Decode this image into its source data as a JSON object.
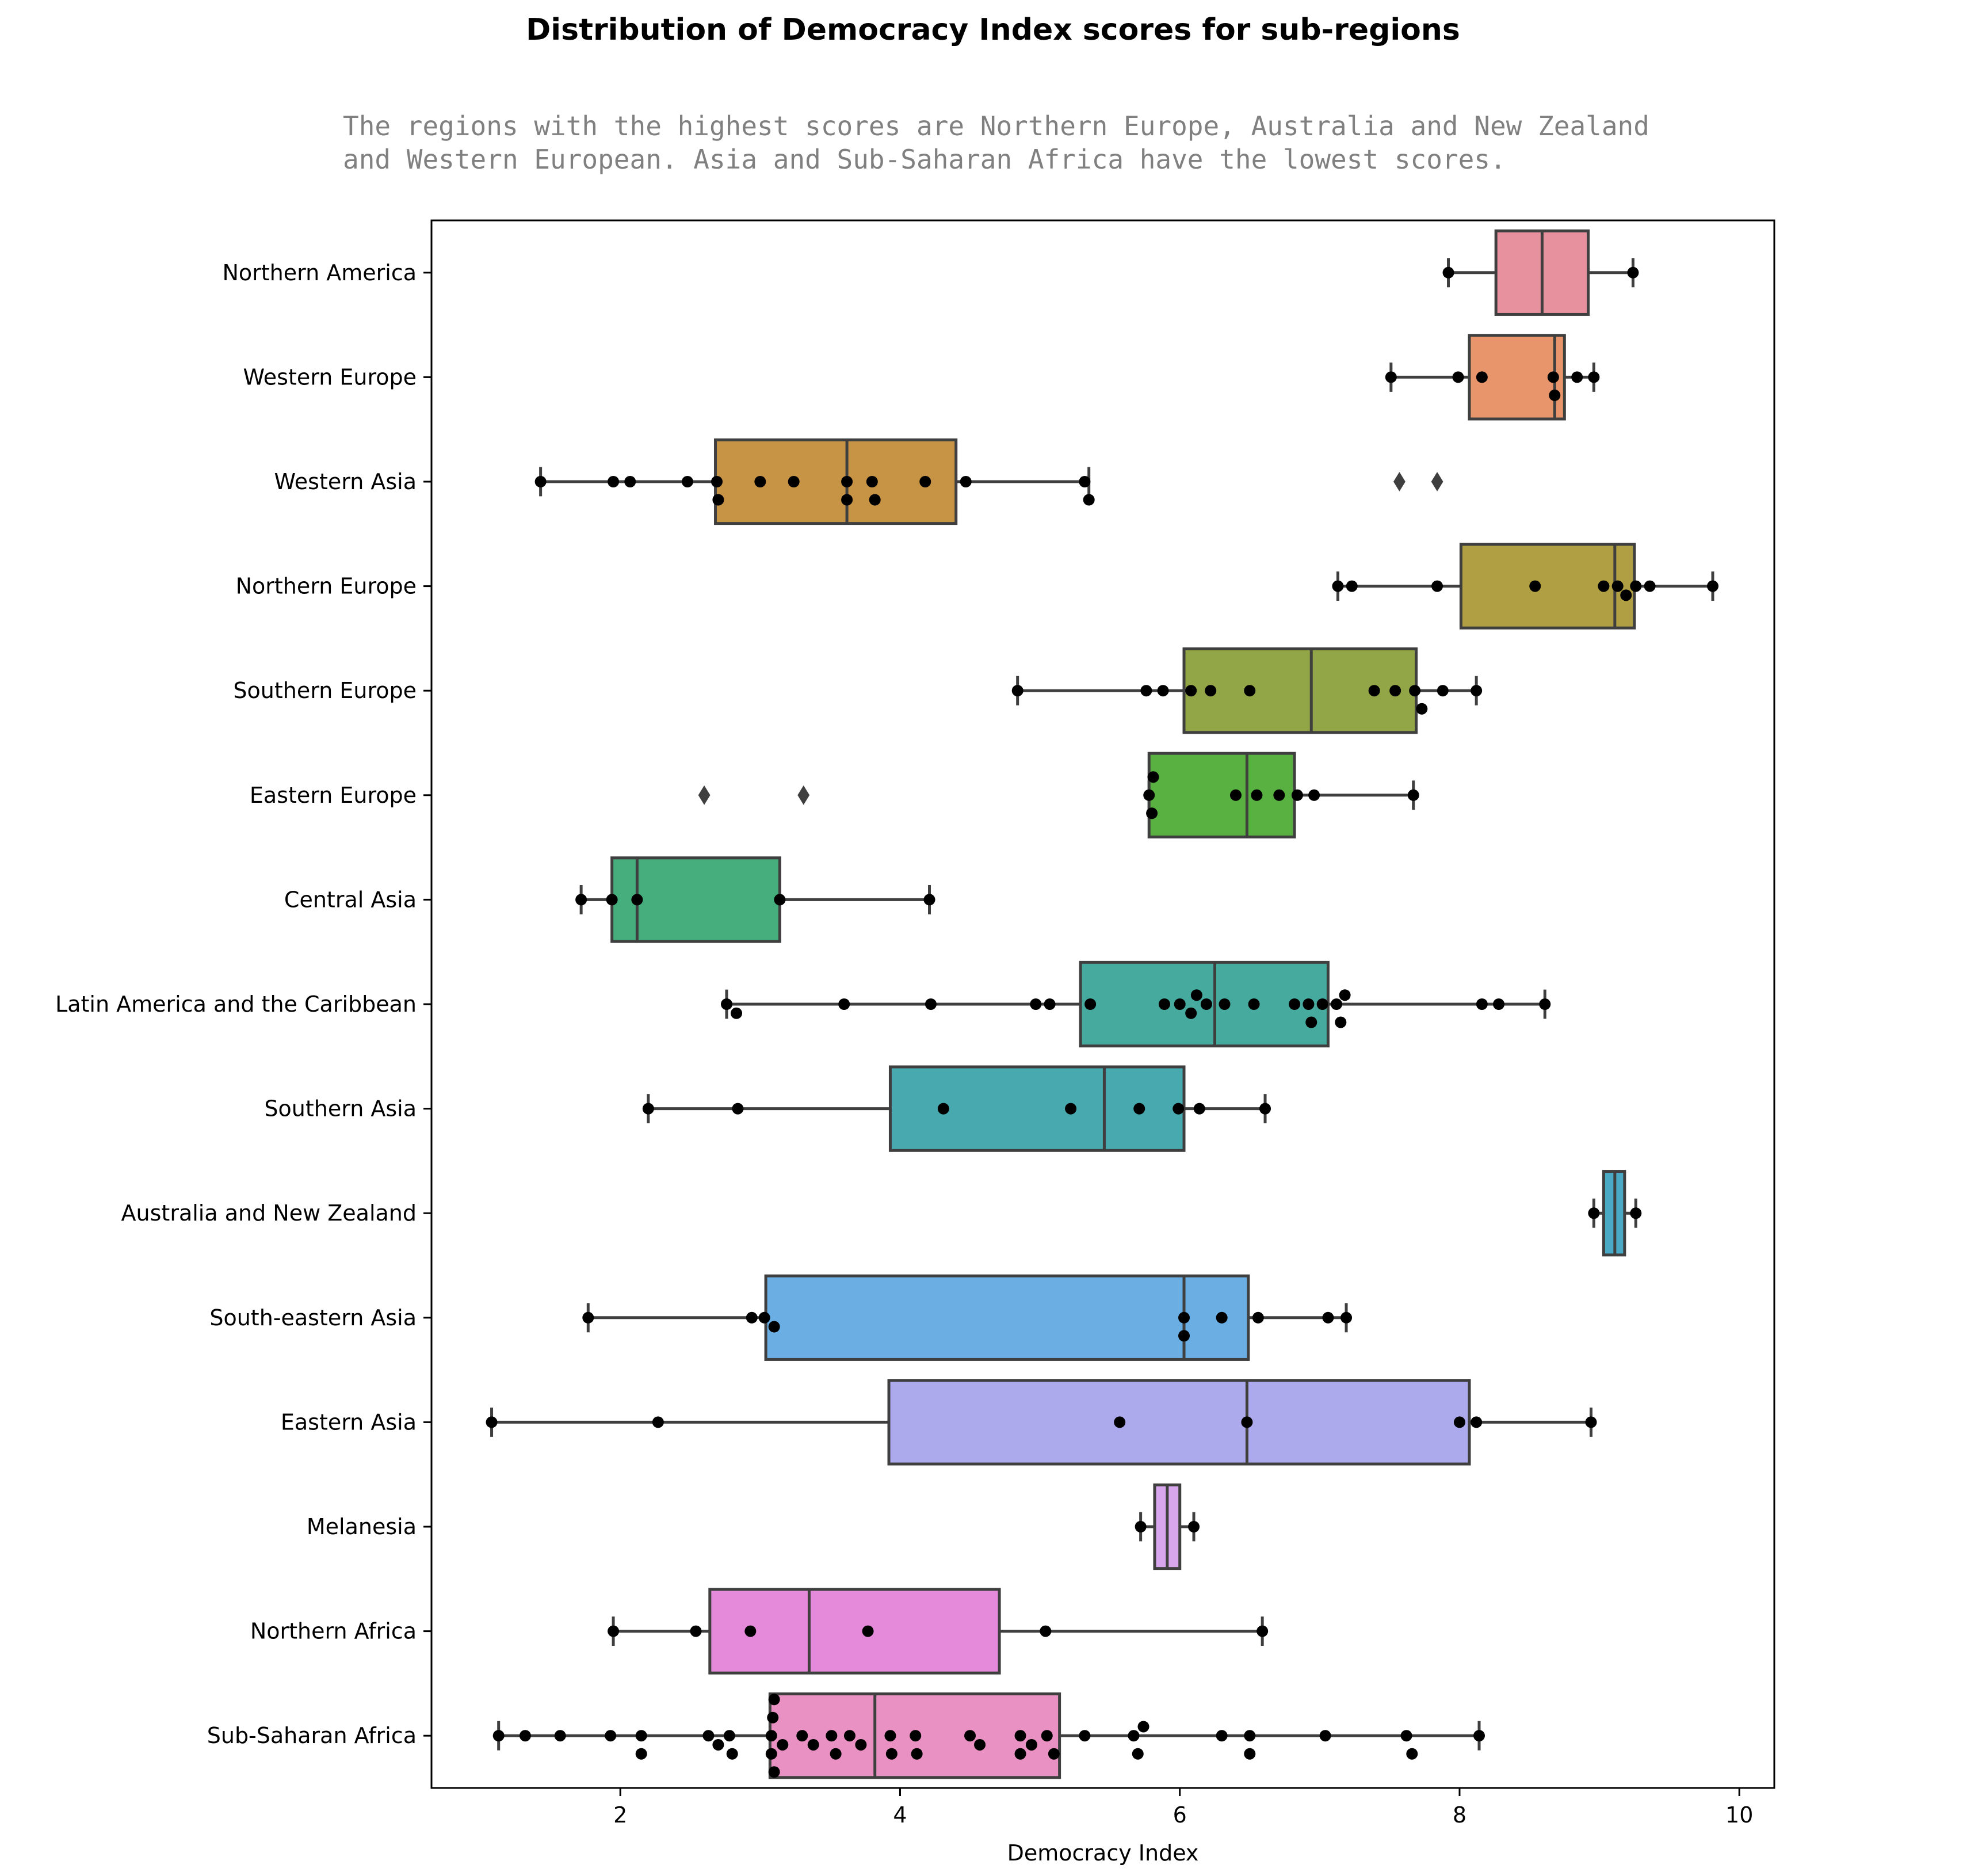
{
  "chart_data": {
    "type": "box",
    "title": "Distribution of Democracy Index scores for sub-regions",
    "subtitle": "The regions with the highest scores are Northern Europe, Australia and New Zealand\nand Western European. Asia and Sub-Saharan Africa have the lowest scores.",
    "xlabel": "Democracy Index",
    "xlim": [
      0.65,
      10.25
    ],
    "xticks": [
      2,
      4,
      6,
      8,
      10
    ],
    "orientation": "horizontal",
    "grid": false,
    "series": [
      {
        "name": "Northern America",
        "color": "#e8919e",
        "box": {
          "whisker_low": 7.92,
          "q1": 8.26,
          "median": 8.59,
          "q3": 8.92,
          "whisker_high": 9.24
        },
        "points": [
          7.92,
          9.24
        ],
        "outliers": []
      },
      {
        "name": "Western Europe",
        "color": "#e8956b",
        "box": {
          "whisker_low": 7.51,
          "q1": 8.07,
          "median": 8.68,
          "q3": 8.75,
          "whisker_high": 8.96
        },
        "points": [
          7.51,
          7.99,
          8.16,
          8.67,
          8.68,
          8.84,
          8.96
        ],
        "outliers": []
      },
      {
        "name": "Western Asia",
        "color": "#c79446",
        "box": {
          "whisker_low": 1.43,
          "q1": 2.68,
          "median": 3.62,
          "q3": 4.4,
          "whisker_high": 5.35
        },
        "points": [
          1.43,
          1.95,
          2.07,
          2.48,
          2.69,
          2.7,
          3.0,
          3.24,
          3.62,
          3.62,
          3.8,
          3.82,
          4.18,
          4.47,
          5.32,
          5.35
        ],
        "outliers": [
          7.57,
          7.84
        ]
      },
      {
        "name": "Northern Europe",
        "color": "#b0a043",
        "box": {
          "whisker_low": 7.13,
          "q1": 8.01,
          "median": 9.11,
          "q3": 9.25,
          "whisker_high": 9.81
        },
        "points": [
          7.13,
          7.23,
          7.84,
          8.54,
          9.03,
          9.13,
          9.19,
          9.26,
          9.36,
          9.81
        ],
        "outliers": []
      },
      {
        "name": "Southern Europe",
        "color": "#93a647",
        "box": {
          "whisker_low": 4.84,
          "q1": 6.03,
          "median": 6.94,
          "q3": 7.69,
          "whisker_high": 8.12
        },
        "points": [
          4.84,
          5.76,
          5.88,
          6.08,
          6.22,
          6.5,
          7.39,
          7.54,
          7.68,
          7.73,
          7.88,
          8.12
        ],
        "outliers": []
      },
      {
        "name": "Eastern Europe",
        "color": "#58b140",
        "box": {
          "whisker_low": 5.78,
          "q1": 5.78,
          "median": 6.48,
          "q3": 6.82,
          "whisker_high": 7.67
        },
        "points": [
          5.78,
          5.8,
          5.81,
          6.4,
          6.55,
          6.71,
          6.84,
          6.96,
          7.67
        ],
        "outliers": [
          2.6,
          3.31
        ]
      },
      {
        "name": "Central Asia",
        "color": "#46ad7c",
        "box": {
          "whisker_low": 1.72,
          "q1": 1.94,
          "median": 2.12,
          "q3": 3.14,
          "whisker_high": 4.21
        },
        "points": [
          1.72,
          1.94,
          2.12,
          3.14,
          4.21
        ],
        "outliers": []
      },
      {
        "name": "Latin America and the Caribbean",
        "color": "#47aa9e",
        "box": {
          "whisker_low": 2.76,
          "q1": 5.29,
          "median": 6.25,
          "q3": 7.06,
          "whisker_high": 8.61
        },
        "points": [
          2.76,
          2.83,
          3.6,
          4.22,
          4.97,
          5.07,
          5.36,
          5.89,
          6.0,
          6.08,
          6.12,
          6.19,
          6.32,
          6.53,
          6.82,
          6.92,
          6.94,
          7.02,
          7.12,
          7.15,
          7.18,
          8.16,
          8.28,
          8.61
        ],
        "outliers": []
      },
      {
        "name": "Southern Asia",
        "color": "#48aaaf",
        "box": {
          "whisker_low": 2.2,
          "q1": 3.93,
          "median": 5.46,
          "q3": 6.03,
          "whisker_high": 6.61
        },
        "points": [
          2.2,
          2.84,
          4.31,
          5.22,
          5.71,
          5.99,
          6.14,
          6.61
        ],
        "outliers": []
      },
      {
        "name": "Australia and New Zealand",
        "color": "#4aa9c4",
        "box": {
          "whisker_low": 8.96,
          "q1": 9.03,
          "median": 9.11,
          "q3": 9.18,
          "whisker_high": 9.26
        },
        "points": [
          8.96,
          9.26
        ],
        "outliers": []
      },
      {
        "name": "South-eastern Asia",
        "color": "#6aaee3",
        "box": {
          "whisker_low": 1.77,
          "q1": 3.04,
          "median": 6.03,
          "q3": 6.49,
          "whisker_high": 7.19
        },
        "points": [
          1.77,
          2.94,
          3.03,
          3.1,
          6.03,
          6.03,
          6.3,
          6.56,
          7.06,
          7.19
        ],
        "outliers": []
      },
      {
        "name": "Eastern Asia",
        "color": "#ada9ed",
        "box": {
          "whisker_low": 1.08,
          "q1": 3.92,
          "median": 6.48,
          "q3": 8.07,
          "whisker_high": 8.94
        },
        "points": [
          1.08,
          2.27,
          5.57,
          6.48,
          8.0,
          8.12,
          8.94
        ],
        "outliers": []
      },
      {
        "name": "Melanesia",
        "color": "#d7a6ec",
        "box": {
          "whisker_low": 5.72,
          "q1": 5.82,
          "median": 5.91,
          "q3": 6.0,
          "whisker_high": 6.1
        },
        "points": [
          5.72,
          6.1
        ],
        "outliers": []
      },
      {
        "name": "Northern Africa",
        "color": "#e58adb",
        "box": {
          "whisker_low": 1.95,
          "q1": 2.64,
          "median": 3.35,
          "q3": 4.71,
          "whisker_high": 6.59
        },
        "points": [
          1.95,
          2.54,
          2.93,
          3.77,
          5.04,
          6.59
        ],
        "outliers": []
      },
      {
        "name": "Sub-Saharan Africa",
        "color": "#e991c2",
        "box": {
          "whisker_low": 1.13,
          "q1": 3.07,
          "median": 3.82,
          "q3": 5.14,
          "whisker_high": 8.14
        },
        "points": [
          1.13,
          1.32,
          1.57,
          1.93,
          2.15,
          2.15,
          2.63,
          2.7,
          2.78,
          2.8,
          3.08,
          3.08,
          3.09,
          3.1,
          3.1,
          3.16,
          3.3,
          3.38,
          3.51,
          3.54,
          3.64,
          3.72,
          3.93,
          3.94,
          4.11,
          4.12,
          4.5,
          4.57,
          4.86,
          4.86,
          4.94,
          5.05,
          5.1,
          5.32,
          5.67,
          5.7,
          5.74,
          6.3,
          6.5,
          6.5,
          7.04,
          7.62,
          7.66,
          8.14
        ],
        "outliers": []
      }
    ]
  }
}
